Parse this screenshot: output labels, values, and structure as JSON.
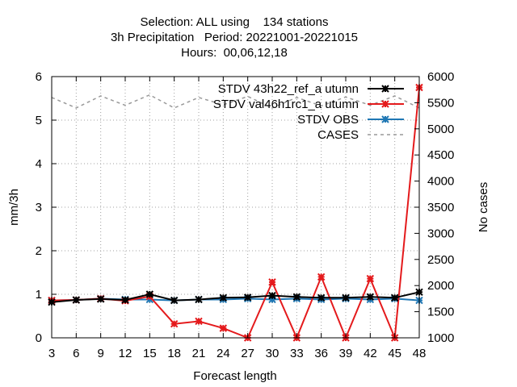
{
  "chart_data": {
    "type": "line",
    "title_lines": [
      "Selection: ALL using    134 stations",
      "3h Precipitation   Period: 20221001-20221015",
      "Hours:  00,06,12,18"
    ],
    "xlabel": "Forecast length",
    "ylabel": "mm/3h",
    "y2label": "No cases",
    "x": [
      3,
      6,
      9,
      12,
      15,
      18,
      21,
      24,
      27,
      30,
      33,
      36,
      39,
      42,
      45,
      48
    ],
    "xticks": [
      "3",
      "6",
      "9",
      "12",
      "15",
      "18",
      "21",
      "24",
      "27",
      "30",
      "33",
      "36",
      "39",
      "42",
      "45",
      "48"
    ],
    "ylim": [
      0,
      6
    ],
    "yticks": [
      "0",
      "1",
      "2",
      "3",
      "4",
      "5",
      "6"
    ],
    "y2lim": [
      1000,
      6000
    ],
    "y2ticks": [
      "1000",
      "1500",
      "2000",
      "2500",
      "3000",
      "3500",
      "4000",
      "4500",
      "5000",
      "5500",
      "6000"
    ],
    "grid": true,
    "legend_position": "top-right",
    "series": [
      {
        "name": "STDV 43h22_ref_autumn",
        "legend_text": "STDV 43h22_ref_a utumn",
        "color": "#000000",
        "marker": "star",
        "axis": "y1",
        "values": [
          0.82,
          0.87,
          0.89,
          0.87,
          1.0,
          0.86,
          0.88,
          0.92,
          0.93,
          0.97,
          0.94,
          0.92,
          0.92,
          0.94,
          0.92,
          1.05
        ]
      },
      {
        "name": "STDV val46h1rc1_autumn",
        "legend_text": "STDV val46h1rc1_a utumn",
        "color": "#e41a1c",
        "marker": "star",
        "axis": "y1",
        "values": [
          0.86,
          0.87,
          0.9,
          0.85,
          0.95,
          0.32,
          0.38,
          0.22,
          0.0,
          1.28,
          0.0,
          1.4,
          0.0,
          1.36,
          0.0,
          5.75
        ]
      },
      {
        "name": "STDV OBS",
        "legend_text": "STDV OBS",
        "color": "#1f77b4",
        "marker": "star",
        "axis": "y1",
        "values": [
          0.86,
          0.87,
          0.9,
          0.88,
          0.88,
          0.86,
          0.88,
          0.88,
          0.9,
          0.88,
          0.9,
          0.88,
          0.9,
          0.88,
          0.9,
          0.86
        ]
      },
      {
        "name": "CASES",
        "legend_text": "CASES",
        "color": "#999999",
        "marker": "none",
        "dashed": true,
        "axis": "y2",
        "values": [
          5600,
          5400,
          5630,
          5450,
          5650,
          5400,
          5600,
          5460,
          5620,
          5400,
          5600,
          5440,
          5610,
          5450,
          5630,
          5400
        ]
      }
    ]
  }
}
